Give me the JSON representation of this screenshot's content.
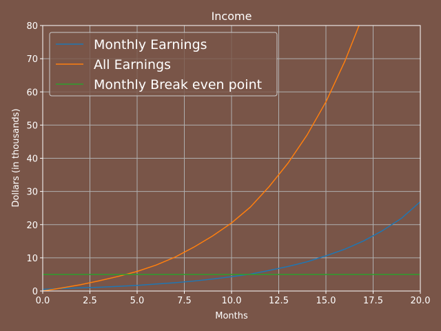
{
  "chart_data": {
    "type": "line",
    "title": "Income",
    "xlabel": "Months",
    "ylabel": "Dollars (in thousands)",
    "xlim": [
      0,
      20
    ],
    "ylim": [
      0,
      80
    ],
    "xticks": [
      "0.0",
      "2.5",
      "5.0",
      "7.5",
      "10.0",
      "12.5",
      "15.0",
      "17.5",
      "20.0"
    ],
    "yticks": [
      "0",
      "10",
      "20",
      "30",
      "40",
      "50",
      "60",
      "70",
      "80"
    ],
    "grid": true,
    "legend_position": "top-left",
    "x": [
      0,
      1,
      2,
      3,
      4,
      5,
      6,
      7,
      8,
      9,
      10,
      11,
      12,
      13,
      14,
      15,
      16,
      17,
      18,
      19,
      20
    ],
    "series": [
      {
        "name": "Monthly Earnings",
        "color": "#1f77b4",
        "values": [
          0.5,
          0.75,
          0.95,
          1.15,
          1.4,
          1.7,
          2.1,
          2.5,
          3.0,
          3.6,
          4.3,
          5.1,
          6.2,
          7.4,
          8.8,
          10.6,
          12.6,
          15.1,
          18.2,
          21.9,
          26.9
        ]
      },
      {
        "name": "All Earnings",
        "color": "#ff7f0e",
        "values": [
          0,
          0.9,
          1.9,
          3.1,
          4.4,
          5.9,
          7.8,
          10.2,
          13.2,
          16.6,
          20.5,
          25.3,
          31.5,
          38.6,
          47.0,
          57.0,
          69.2,
          83.5,
          null,
          null,
          null
        ]
      },
      {
        "name": "Monthly Break even point",
        "color": "#2ca02c",
        "values": [
          5,
          5,
          5,
          5,
          5,
          5,
          5,
          5,
          5,
          5,
          5,
          5,
          5,
          5,
          5,
          5,
          5,
          5,
          5,
          5,
          5
        ]
      }
    ]
  }
}
